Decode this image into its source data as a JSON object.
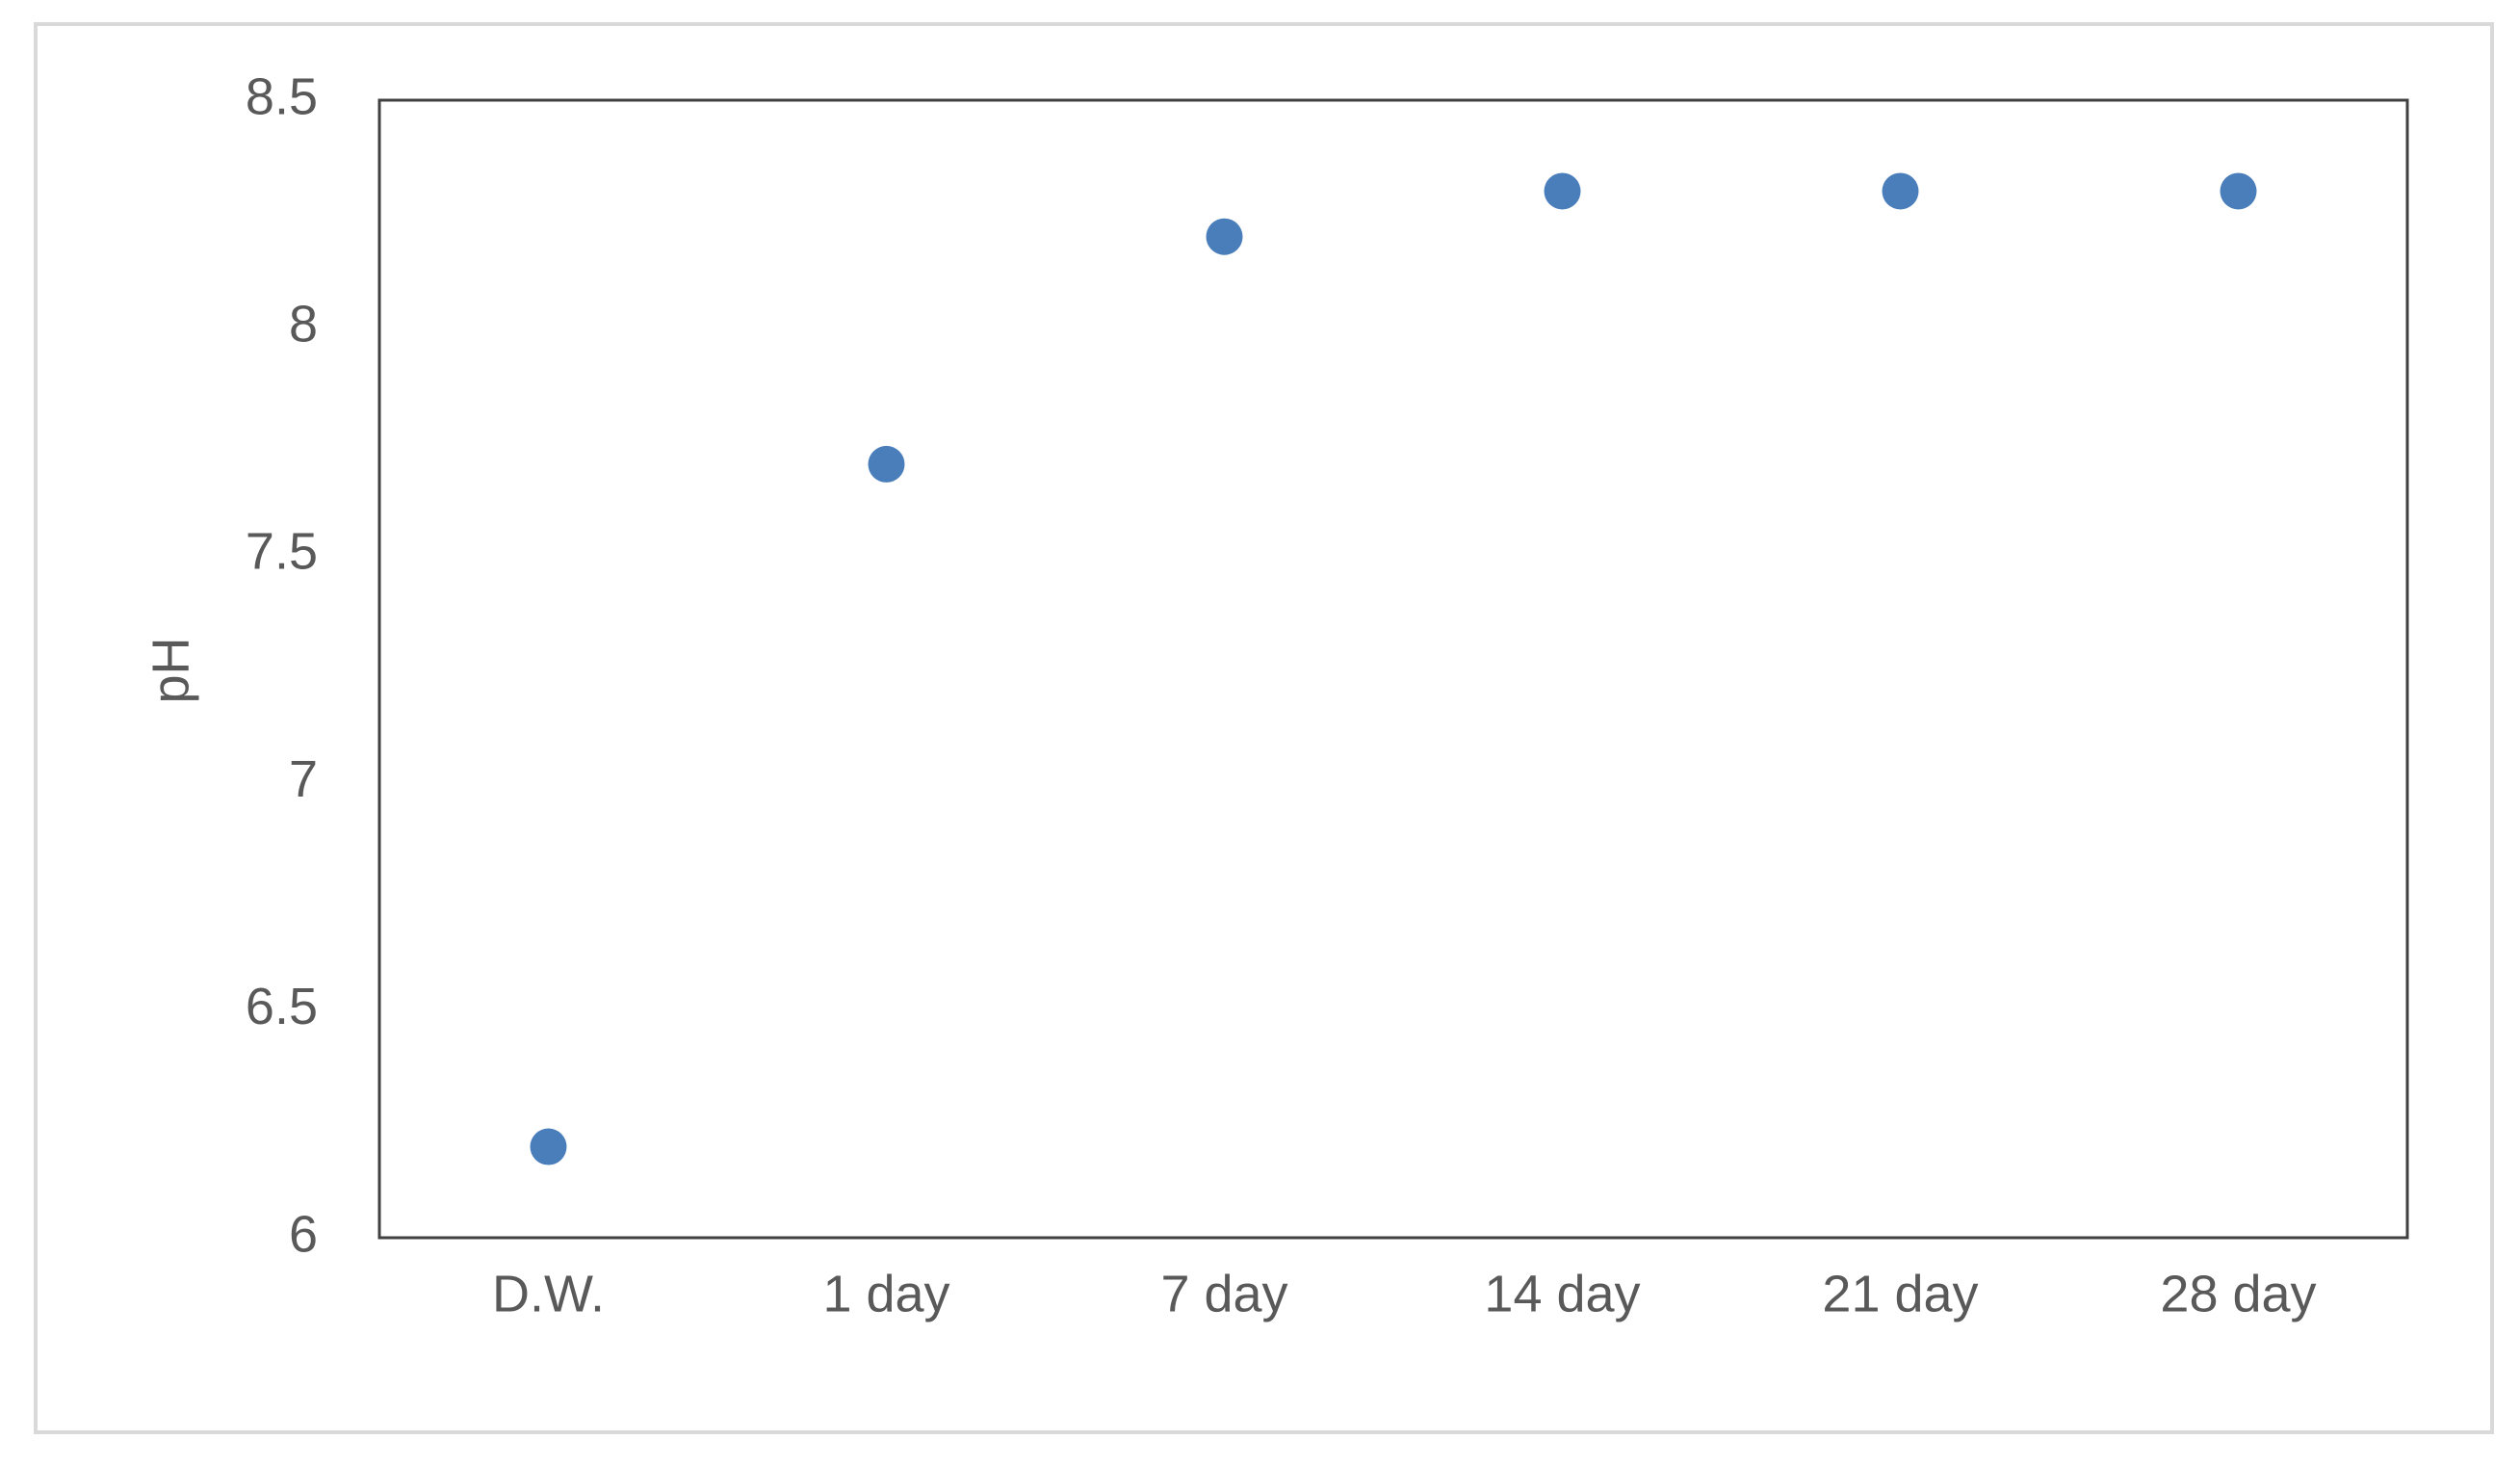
{
  "chart_data": {
    "type": "scatter",
    "y_label": "pH",
    "categories": [
      "D.W.",
      "1 day",
      "7 day",
      "14 day",
      "21 day",
      "28 day"
    ],
    "values": [
      6.2,
      7.7,
      8.2,
      8.3,
      8.3,
      8.3
    ],
    "color": "#4a7ebb",
    "ylim": [
      6,
      8.5
    ],
    "yticks": [
      6,
      6.5,
      7,
      7.5,
      8,
      8.5
    ],
    "grid": false
  }
}
